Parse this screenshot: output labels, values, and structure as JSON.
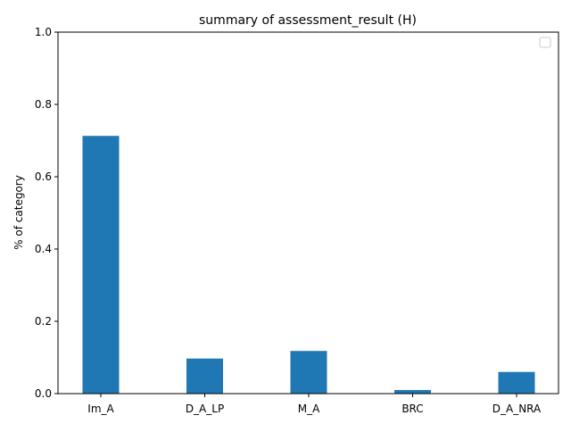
{
  "chart_data": {
    "type": "bar",
    "title": "summary of assessment_result (H)",
    "xlabel": "",
    "ylabel": "% of category",
    "categories": [
      "Im_A",
      "D_A_LP",
      "M_A",
      "BRC",
      "D_A_NRA"
    ],
    "values": [
      0.713,
      0.097,
      0.118,
      0.01,
      0.06
    ],
    "ylim": [
      0,
      1.0
    ],
    "yticks": [
      "0.0",
      "0.2",
      "0.4",
      "0.6",
      "0.8",
      "1.0"
    ],
    "bar_color": "#1f77b4",
    "grid": false,
    "legend": {
      "placement": "top-right",
      "entries": []
    }
  }
}
